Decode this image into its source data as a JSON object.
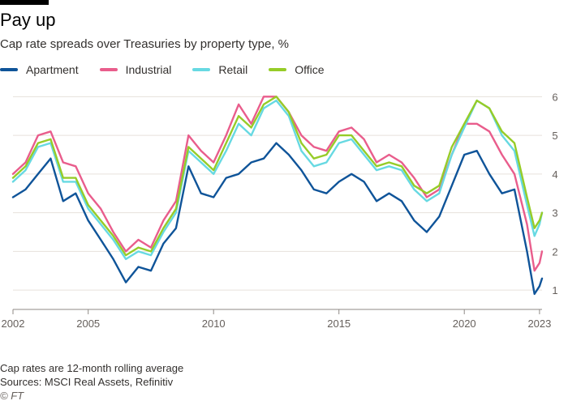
{
  "header": {
    "title": "Pay up",
    "subtitle": "Cap rate spreads over Treasuries by property type, %"
  },
  "footer": {
    "note": "Cap rates are 12-month rolling average",
    "sources": "Sources: MSCI Real Assets, Refinitiv",
    "credit": "© FT"
  },
  "chart_data": {
    "type": "line",
    "title": "Pay up",
    "subtitle": "Cap rate spreads over Treasuries by property type, %",
    "xlabel": "",
    "ylabel": "",
    "xlim": [
      2002.0,
      2023.1
    ],
    "ylim": [
      0.5,
      6.3
    ],
    "x_ticks": [
      2002,
      2005,
      2010,
      2015,
      2020,
      2023
    ],
    "x_tick_labels": [
      "2002",
      "2005",
      "2010",
      "2015",
      "2020",
      "2023"
    ],
    "y_ticks": [
      1,
      2,
      3,
      4,
      5,
      6
    ],
    "y_tick_labels": [
      "1",
      "2",
      "3",
      "4",
      "5",
      "6"
    ],
    "grid": "horizontal",
    "legend_position": "top-left",
    "x": [
      2002.0,
      2002.5,
      2003.0,
      2003.5,
      2004.0,
      2004.5,
      2005.0,
      2005.5,
      2006.0,
      2006.5,
      2007.0,
      2007.5,
      2008.0,
      2008.5,
      2009.0,
      2009.5,
      2010.0,
      2010.5,
      2011.0,
      2011.5,
      2012.0,
      2012.5,
      2013.0,
      2013.5,
      2014.0,
      2014.5,
      2015.0,
      2015.5,
      2016.0,
      2016.5,
      2017.0,
      2017.5,
      2018.0,
      2018.5,
      2019.0,
      2019.5,
      2020.0,
      2020.5,
      2021.0,
      2021.5,
      2022.0,
      2022.5,
      2022.8,
      2023.0,
      2023.1
    ],
    "series": [
      {
        "name": "Apartment",
        "color": "#0f5499",
        "values": [
          3.4,
          3.6,
          4.0,
          4.4,
          3.3,
          3.5,
          2.8,
          2.3,
          1.8,
          1.2,
          1.6,
          1.5,
          2.2,
          2.6,
          4.2,
          3.5,
          3.4,
          3.9,
          4.0,
          4.3,
          4.4,
          4.8,
          4.5,
          4.1,
          3.6,
          3.5,
          3.8,
          4.0,
          3.8,
          3.3,
          3.5,
          3.3,
          2.8,
          2.5,
          2.9,
          3.7,
          4.5,
          4.6,
          4.0,
          3.5,
          3.6,
          2.0,
          0.9,
          1.1,
          1.3
        ]
      },
      {
        "name": "Industrial",
        "color": "#e95d8c",
        "values": [
          4.0,
          4.3,
          5.0,
          5.1,
          4.3,
          4.2,
          3.5,
          3.1,
          2.5,
          2.0,
          2.3,
          2.1,
          2.8,
          3.3,
          5.0,
          4.6,
          4.3,
          5.0,
          5.8,
          5.3,
          6.0,
          6.0,
          5.6,
          5.0,
          4.7,
          4.6,
          5.1,
          5.2,
          4.9,
          4.3,
          4.5,
          4.3,
          3.9,
          3.4,
          3.6,
          4.5,
          5.3,
          5.3,
          5.1,
          4.5,
          4.0,
          2.7,
          1.5,
          1.7,
          2.0
        ]
      },
      {
        "name": "Retail",
        "color": "#67d9e2",
        "values": [
          3.8,
          4.1,
          4.7,
          4.8,
          3.8,
          3.8,
          3.1,
          2.7,
          2.3,
          1.8,
          2.0,
          1.9,
          2.5,
          3.0,
          4.6,
          4.3,
          4.0,
          4.6,
          5.3,
          5.0,
          5.7,
          5.9,
          5.5,
          4.6,
          4.2,
          4.3,
          4.8,
          4.9,
          4.5,
          4.1,
          4.2,
          4.1,
          3.6,
          3.3,
          3.5,
          4.5,
          5.2,
          5.9,
          5.7,
          5.0,
          4.6,
          3.2,
          2.4,
          2.7,
          3.0
        ]
      },
      {
        "name": "Office",
        "color": "#96cc28",
        "values": [
          3.9,
          4.2,
          4.8,
          4.9,
          3.9,
          3.9,
          3.2,
          2.8,
          2.4,
          1.9,
          2.1,
          2.0,
          2.6,
          3.1,
          4.7,
          4.4,
          4.1,
          4.8,
          5.5,
          5.2,
          5.8,
          6.0,
          5.6,
          4.8,
          4.4,
          4.5,
          5.0,
          5.0,
          4.6,
          4.2,
          4.3,
          4.2,
          3.7,
          3.5,
          3.7,
          4.7,
          5.3,
          5.9,
          5.7,
          5.1,
          4.8,
          3.4,
          2.6,
          2.8,
          3.0
        ]
      }
    ]
  }
}
